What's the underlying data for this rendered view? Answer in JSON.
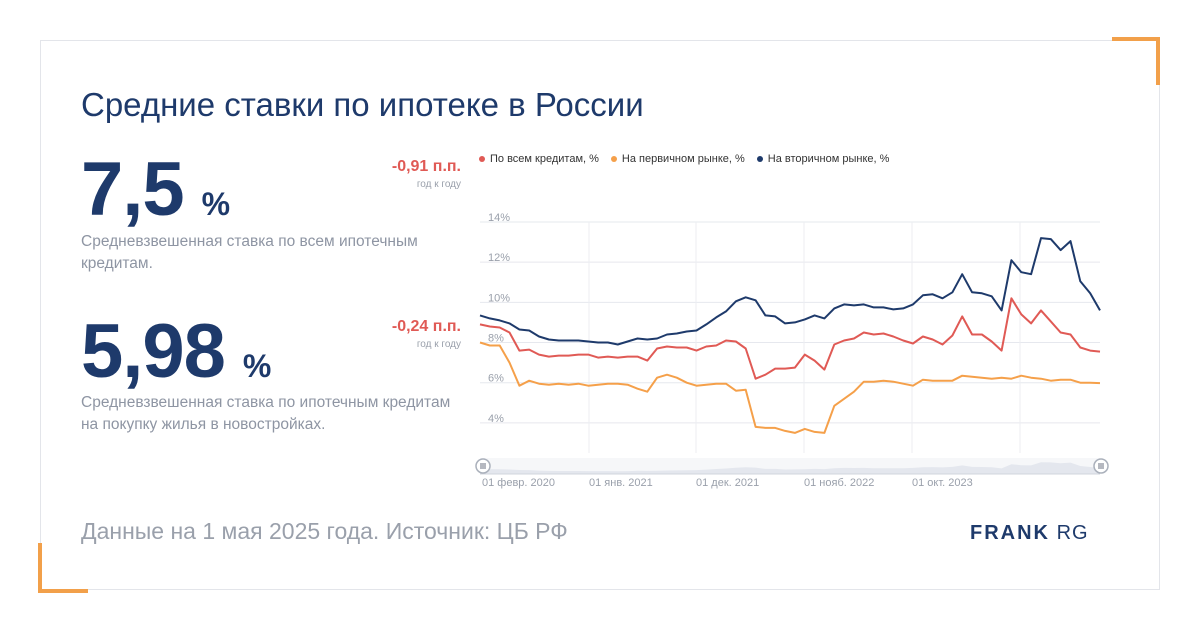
{
  "title": "Средние ставки по ипотеке в России",
  "kpis": [
    {
      "value": "7,5",
      "unit": "%",
      "description": "Средневзвешенная ставка по всем ипотечным кредитам.",
      "delta": "-0,91 п.п.",
      "delta_note": "год к году"
    },
    {
      "value": "5,98",
      "unit": "%",
      "description": "Средневзвешенная ставка по ипотечным кредитам на покупку жилья в новостройках.",
      "delta": "-0,24 п.п.",
      "delta_note": "год к году"
    }
  ],
  "footer": "Данные на 1 мая 2025 года. Источник: ЦБ РФ",
  "logo": {
    "bold": "FRANK",
    "light": "RG"
  },
  "colors": {
    "all": "#e05a55",
    "primary": "#f5a04a",
    "secondary": "#1e3a6b",
    "accent": "#f2a04a"
  },
  "chart_data": {
    "type": "line",
    "title": "",
    "xlabel": "",
    "ylabel": "",
    "ylim": [
      2.5,
      14
    ],
    "y_ticks": [
      "14%",
      "12%",
      "10%",
      "8%",
      "6%",
      "4%"
    ],
    "x_tick_labels": [
      "01 февр. 2020",
      "01 янв. 2021",
      "01 дек. 2021",
      "01 нояб. 2022",
      "01 окт. 2023"
    ],
    "legend_position": "top",
    "grid": true,
    "series": [
      {
        "name": "По всем кредитам, %",
        "color": "#e05a55",
        "values": [
          8.9,
          8.8,
          8.75,
          8.5,
          7.6,
          7.65,
          7.4,
          7.3,
          7.35,
          7.35,
          7.4,
          7.4,
          7.25,
          7.3,
          7.25,
          7.3,
          7.3,
          7.1,
          7.7,
          7.8,
          7.75,
          7.75,
          7.6,
          7.8,
          7.85,
          8.1,
          8.05,
          7.7,
          6.2,
          6.4,
          6.7,
          6.7,
          6.75,
          7.4,
          7.1,
          6.65,
          7.9,
          8.1,
          8.2,
          8.5,
          8.4,
          8.45,
          8.3,
          8.1,
          7.95,
          8.3,
          8.15,
          7.9,
          8.35,
          9.3,
          8.4,
          8.4,
          8.05,
          7.6,
          10.2,
          9.4,
          8.95,
          9.6,
          9.05,
          8.5,
          8.4,
          7.75,
          7.6,
          7.55
        ]
      },
      {
        "name": "На первичном рынке, %",
        "color": "#f5a04a",
        "values": [
          8.0,
          7.85,
          7.85,
          7.0,
          5.85,
          6.1,
          5.95,
          5.9,
          5.95,
          5.9,
          5.95,
          5.85,
          5.9,
          5.95,
          5.95,
          5.9,
          5.7,
          5.55,
          6.25,
          6.4,
          6.25,
          6.0,
          5.85,
          5.9,
          5.95,
          5.95,
          5.6,
          5.65,
          3.8,
          3.75,
          3.75,
          3.6,
          3.5,
          3.7,
          3.55,
          3.5,
          4.85,
          5.2,
          5.55,
          6.05,
          6.05,
          6.1,
          6.05,
          5.95,
          5.85,
          6.15,
          6.1,
          6.1,
          6.1,
          6.35,
          6.3,
          6.25,
          6.2,
          6.25,
          6.2,
          6.35,
          6.25,
          6.2,
          6.1,
          6.15,
          6.15,
          6.0,
          6.0,
          5.98
        ]
      },
      {
        "name": "На вторичном рынке, %",
        "color": "#1e3a6b",
        "values": [
          9.35,
          9.2,
          9.1,
          8.95,
          8.65,
          8.6,
          8.3,
          8.15,
          8.1,
          8.1,
          8.1,
          8.05,
          8.0,
          8.0,
          7.9,
          8.05,
          8.2,
          8.15,
          8.2,
          8.4,
          8.45,
          8.55,
          8.6,
          8.9,
          9.25,
          9.55,
          10.05,
          10.25,
          10.1,
          9.35,
          9.3,
          8.95,
          9.0,
          9.15,
          9.35,
          9.2,
          9.7,
          9.9,
          9.85,
          9.9,
          9.75,
          9.75,
          9.65,
          9.7,
          9.9,
          10.35,
          10.4,
          10.2,
          10.5,
          11.4,
          10.5,
          10.45,
          10.3,
          9.6,
          12.1,
          11.5,
          11.4,
          13.2,
          13.15,
          12.6,
          13.05,
          11.05,
          10.45,
          9.6
        ]
      }
    ]
  }
}
